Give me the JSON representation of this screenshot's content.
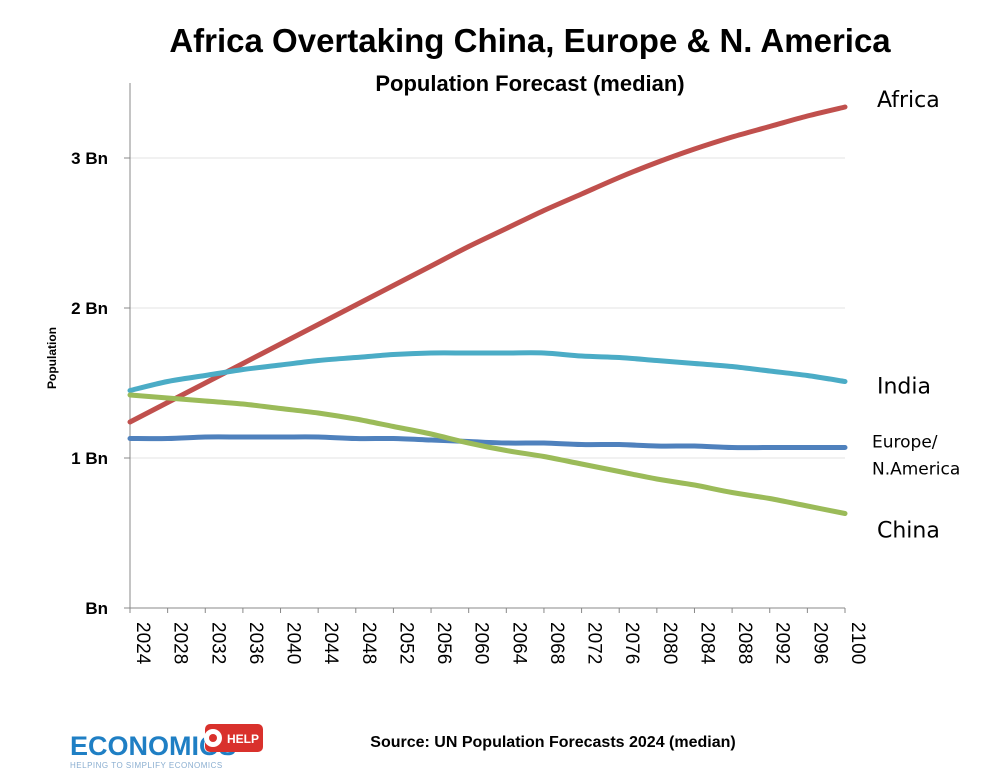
{
  "chart_data": {
    "type": "line",
    "title": "Africa Overtaking China, Europe & N. America",
    "subtitle": "Population Forecast (median)",
    "ylabel": "Population",
    "xlabel": "",
    "ylim": [
      0,
      3.5
    ],
    "grid": true,
    "x": [
      2024,
      2028,
      2032,
      2036,
      2040,
      2044,
      2048,
      2052,
      2056,
      2060,
      2064,
      2068,
      2072,
      2076,
      2080,
      2084,
      2088,
      2092,
      2096,
      2100
    ],
    "x_tick_labels": [
      "2024",
      "2028",
      "2032",
      "2036",
      "2040",
      "2044",
      "2048",
      "2052",
      "2056",
      "2060",
      "2064",
      "2068",
      "2072",
      "2076",
      "2080",
      "2084",
      "2088",
      "2092",
      "2096",
      "2100"
    ],
    "y_ticks": [
      {
        "value": 0,
        "label": "Bn"
      },
      {
        "value": 1,
        "label": "1 Bn"
      },
      {
        "value": 2,
        "label": "2 Bn"
      },
      {
        "value": 3,
        "label": "3 Bn"
      }
    ],
    "series": [
      {
        "name": "Africa",
        "label_lines": [
          "Africa"
        ],
        "color": "#c0504d",
        "values": [
          1.24,
          1.37,
          1.5,
          1.63,
          1.76,
          1.89,
          2.02,
          2.15,
          2.28,
          2.41,
          2.53,
          2.65,
          2.76,
          2.87,
          2.97,
          3.06,
          3.14,
          3.21,
          3.28,
          3.34
        ]
      },
      {
        "name": "India",
        "label_lines": [
          "India"
        ],
        "color": "#4bacc6",
        "values": [
          1.45,
          1.51,
          1.55,
          1.59,
          1.62,
          1.65,
          1.67,
          1.69,
          1.7,
          1.7,
          1.7,
          1.7,
          1.68,
          1.67,
          1.65,
          1.63,
          1.61,
          1.58,
          1.55,
          1.51
        ]
      },
      {
        "name": "Europe/N.America",
        "label_lines": [
          "Europe/",
          "N.America"
        ],
        "color": "#4f81bd",
        "values": [
          1.13,
          1.13,
          1.14,
          1.14,
          1.14,
          1.14,
          1.13,
          1.13,
          1.12,
          1.11,
          1.1,
          1.1,
          1.09,
          1.09,
          1.08,
          1.08,
          1.07,
          1.07,
          1.07,
          1.07
        ]
      },
      {
        "name": "China",
        "label_lines": [
          "China"
        ],
        "color": "#9bbb59",
        "values": [
          1.42,
          1.4,
          1.38,
          1.36,
          1.33,
          1.3,
          1.26,
          1.21,
          1.16,
          1.1,
          1.05,
          1.01,
          0.96,
          0.91,
          0.86,
          0.82,
          0.77,
          0.73,
          0.68,
          0.63
        ]
      }
    ],
    "source": "Source: UN Population Forecasts 2024 (median)"
  },
  "logo": {
    "name": "ECONOMICS",
    "badge": "HELP",
    "tagline": "HELPING TO SIMPLIFY ECONOMICS",
    "blue": "#1f7fc4",
    "red": "#d9312c"
  }
}
